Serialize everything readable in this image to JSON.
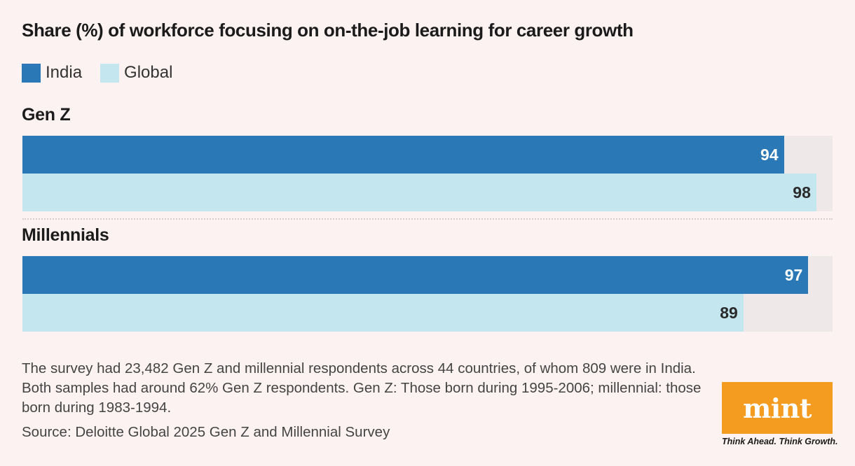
{
  "chart_data": {
    "type": "bar",
    "orientation": "horizontal",
    "title": "Share (%) of workforce focusing on on-the-job learning for career growth",
    "categories": [
      "Gen Z",
      "Millennials"
    ],
    "series": [
      {
        "name": "India",
        "values": [
          94,
          97
        ],
        "color": "#2a78b5"
      },
      {
        "name": "Global",
        "values": [
          98,
          89
        ],
        "color": "#c3e6ef"
      }
    ],
    "xlim": [
      0,
      100
    ],
    "grid": false,
    "legend_position": "top-left"
  },
  "colors": {
    "background": "#fcf2f1",
    "track": "#efe8e8",
    "india": "#2a78b5",
    "global": "#c3e6ef",
    "brand": "#f39c1f"
  },
  "footnote": "The survey had 23,482 Gen Z and millennial respondents across 44 countries, of whom 809 were in India. Both samples had around 62% Gen Z respondents. Gen Z: Those born during 1995-2006; millennial: those born during 1983-1994.",
  "source": "Source: Deloitte Global 2025 Gen Z and Millennial Survey",
  "brand": {
    "logo": "mint",
    "tagline": "Think Ahead. Think Growth."
  }
}
